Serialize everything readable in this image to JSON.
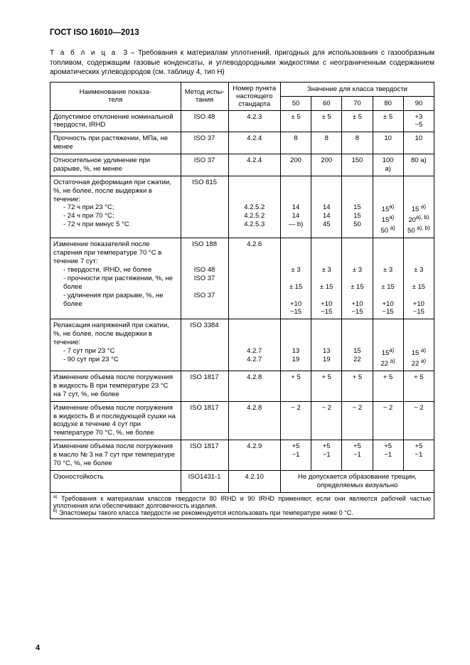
{
  "header": "ГОСТ ISO 16010—2013",
  "caption_prefix": "Т а б л и ц а",
  "caption_num": "3",
  "caption_text": " – Требования к материалам уплотнений, пригодных для использования с газообразным топливом, содержащим газовые конденсаты, и углеводородными жидкостями с неограниченным содержанием ароматических углеводородов (см. таблицу 4, тип H)",
  "head": {
    "c1": "Наименование показа-\nтеля",
    "c2": "Метод испы-\nтания",
    "c3": "Номер пункта настоящего стандарта",
    "c4": "Значение для класса твердости",
    "v": [
      "50",
      "60",
      "70",
      "80",
      "90"
    ]
  },
  "rows": [
    {
      "name": "Допустимое отклонение номинальной твердости, IRHD",
      "method": "ISO 48",
      "clause": "4.2.3",
      "vals": [
        "± 5",
        "± 5",
        "± 5",
        "± 5",
        "+3\n−5"
      ]
    },
    {
      "name": "Прочность при растяжении, МПа, не менее",
      "method": "ISO 37",
      "clause": "4.2.4",
      "vals": [
        "8",
        "8",
        "8",
        "10",
        "10"
      ]
    },
    {
      "name": "Относительное удлинение при разрыве, %, не менее",
      "method": "ISO 37",
      "clause": "4.2.4",
      "vals": [
        "200",
        "200",
        "150",
        "100\nа)",
        "80 а)"
      ]
    },
    {
      "name": "Остаточная деформация при сжатии, %, не более, после выдержки в течение:",
      "subs": [
        "- 72 ч при 23 °С;",
        "- 24 ч при 70 °С;",
        "- 72 ч при минус 5 °С"
      ],
      "method": "ISO 815",
      "clause": "\n\n\n4.2.5.2\n4.2.5.2\n4.2.5.3",
      "vals": [
        "\n\n\n14\n14\n— b)",
        "\n\n\n14\n14\n45",
        "\n\n\n15\n15\n50",
        "\n\n\n15<sup>а)</sup>\n15<sup>а)</sup>\n50 <sup>а)</sup>",
        "\n\n\n15 <sup>а)</sup>\n20<sup>а), b)</sup>\n50 <sup>а), b)</sup>"
      ]
    },
    {
      "name": "Изменение показателей после старения при температуре 70 °С в течение 7 сут:",
      "subs": [
        "- твердости, IRHD, не более",
        "- прочности при растяжении, %, не более",
        "- удлинения при разрыве, %, не более"
      ],
      "method": "ISO 188\n\n\nISO 48\nISO 37\n\nISO 37",
      "clause": "4.2.6",
      "vals": [
        "\n\n\n± 3\n\n± 15\n\n+10\n−15",
        "\n\n\n± 3\n\n± 15\n\n+10\n−15",
        "\n\n\n± 3\n\n± 15\n\n+10\n−15",
        "\n\n\n± 3\n\n± 15\n\n+10\n−15",
        "\n\n\n± 3\n\n± 15\n\n+10\n−15"
      ]
    },
    {
      "name": "Релаксация напряжений при сжатии, %, не более, после выдержки в течение:",
      "subs": [
        "- 7 сут при 23 °С",
        "- 90 сут при 23 °С"
      ],
      "method": "ISO 3384",
      "clause": "\n\n\n4.2.7\n4.2.7",
      "vals": [
        "\n\n\n13\n19",
        "\n\n\n13\n19",
        "\n\n\n15\n22",
        "\n\n\n15<sup>а)</sup>\n22 <sup>а)</sup>",
        "\n\n\n15 <sup>а)</sup>\n22 <sup>а)</sup>"
      ]
    },
    {
      "name": "Изменение объема после погружения в жидкость B при температуре 23 °С на 7 сут, %, не более",
      "method": "ISO 1817",
      "clause": "4.2.8",
      "vals": [
        "+ 5",
        "+ 5",
        "+ 5",
        "+ 5",
        "+ 5"
      ]
    },
    {
      "name": "Изменение объема после погружения в жидкость B и последующей сушки на воздухе в течение 4 сут при температуре 70 °С, %, не более",
      "method": "ISO 1817",
      "clause": "4.2.8",
      "vals": [
        "− 2",
        "− 2",
        "− 2",
        "− 2",
        "− 2"
      ]
    },
    {
      "name": "Изменение объема после погружения в масло № 3 на 7 сут при температуре\n70 °С, %, не более",
      "method": "ISO 1817",
      "clause": "4.2.9",
      "vals": [
        "+5\n−1",
        "+5\n−1",
        "+5\n−1",
        "+5\n−1",
        "+5\n−1"
      ]
    },
    {
      "name": "Озоностойкость",
      "method": "ISO1431-1",
      "clause": "4.2.10",
      "merged": "Не допускается образование трещин, определяемых визуально"
    }
  ],
  "footnotes": [
    "а) Требования к материалам классов твердости 80 IRHD и 90 IRHD применяют, если они являются рабочей частью уплотнения или обеспечивают долговечность изделия.",
    "b) Эластомеры такого класса твердости не рекомендуется использовать при температуре ниже 0 °С."
  ],
  "page_number": "4"
}
